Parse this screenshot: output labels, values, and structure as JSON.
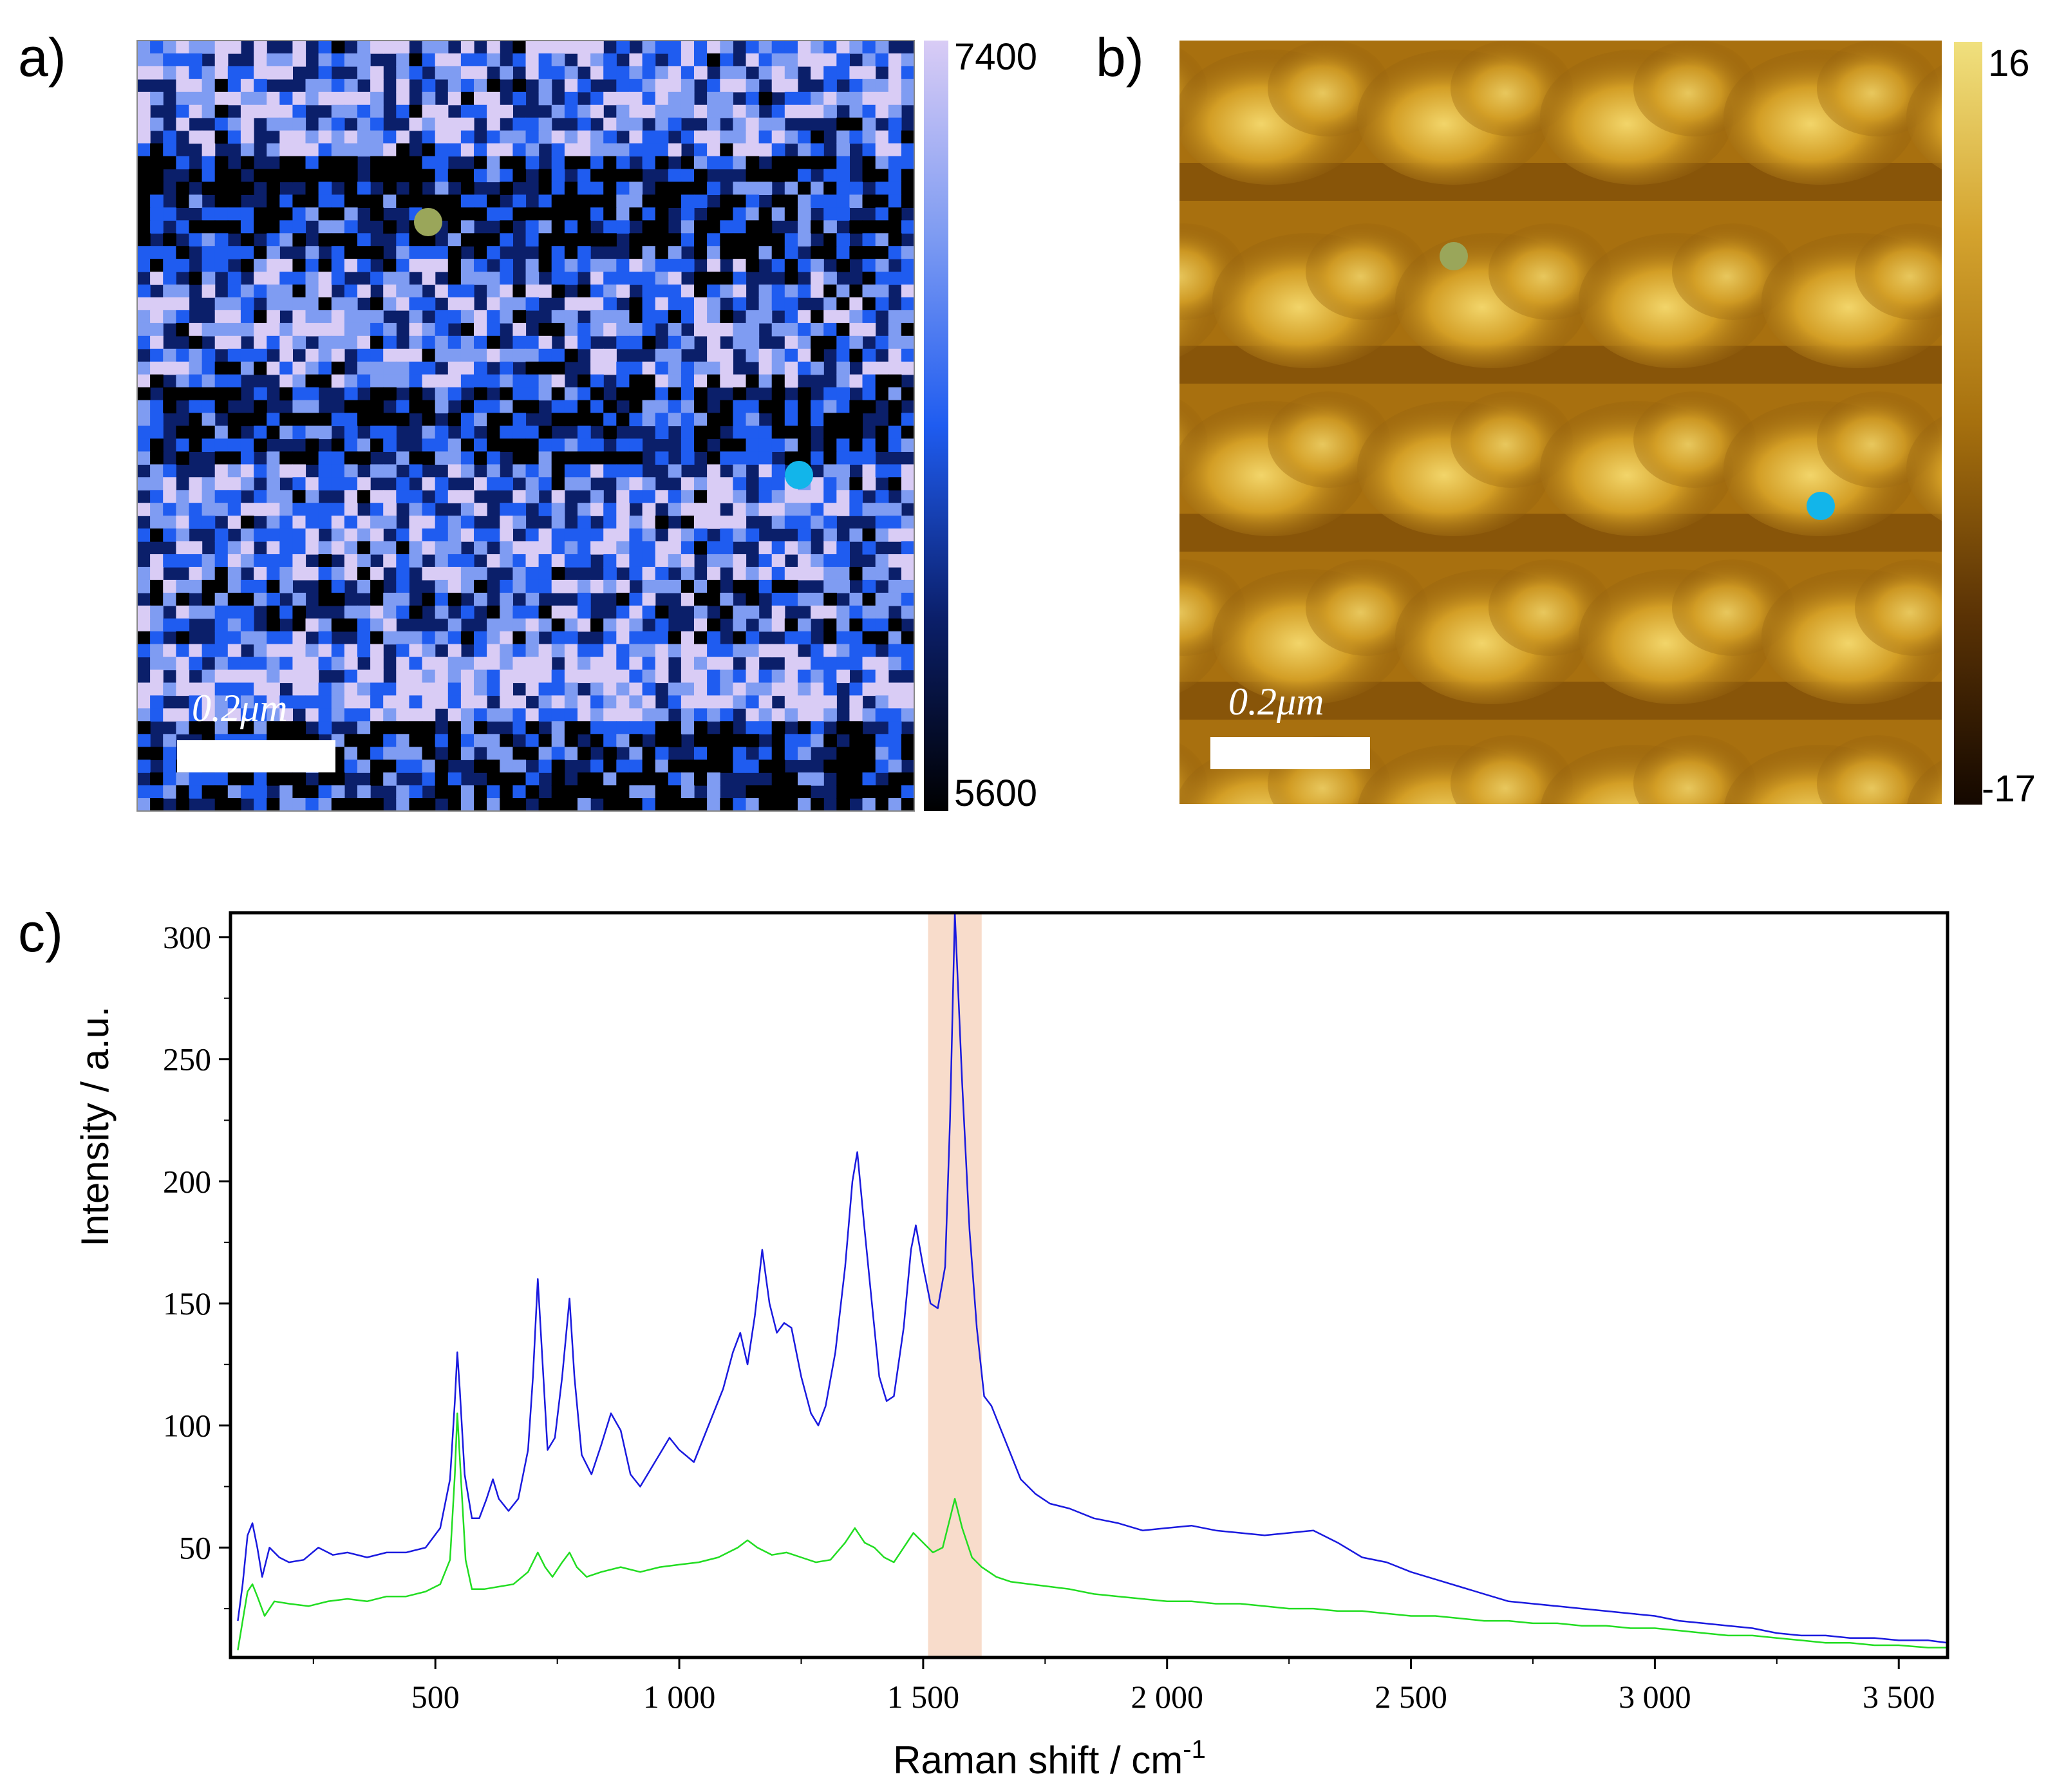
{
  "panels": {
    "a": {
      "label": "a)",
      "colorbar": {
        "max_label": "7400",
        "min_label": "5600",
        "colors": [
          "#000000",
          "#0b1f6a",
          "#1f5cf0",
          "#7f9cf2",
          "#d9ccf5"
        ]
      },
      "scale_bar": "0.2μm",
      "markers": [
        {
          "color": "#9aa65a"
        },
        {
          "color": "#12b5ea"
        }
      ]
    },
    "b": {
      "label": "b)",
      "colorbar": {
        "max_label": "16",
        "min_label": "-17",
        "colors": [
          "#140800",
          "#5b3305",
          "#a6700e",
          "#d4a32e",
          "#f0e07e"
        ]
      },
      "scale_bar": "0.2μm",
      "markers": [
        {
          "color": "#9aa65a"
        },
        {
          "color": "#12b5ea"
        }
      ]
    },
    "c": {
      "label": "c)"
    }
  },
  "chart_data": {
    "type": "line",
    "title": "",
    "xlabel": "Raman shift / cm-1",
    "xlabel_main": "Raman shift / cm",
    "xlabel_sup": "-1",
    "ylabel": "Intensity / a.u.",
    "xlim": [
      80,
      3600
    ],
    "ylim": [
      5,
      310
    ],
    "x_ticks": [
      500,
      1000,
      1500,
      2000,
      2500,
      3000,
      3500
    ],
    "x_tick_labels": [
      "500",
      "1 000",
      "1 500",
      "2 000",
      "2 500",
      "3 000",
      "3 500"
    ],
    "y_ticks": [
      50,
      100,
      150,
      200,
      250,
      300
    ],
    "y_tick_labels": [
      "50",
      "100",
      "150",
      "200",
      "250",
      "300"
    ],
    "highlight_band": {
      "from": 1510,
      "to": 1620,
      "color": "#f8dccb"
    },
    "series": [
      {
        "name": "blue spectrum",
        "color": "#1a1adf",
        "points": [
          [
            95,
            20
          ],
          [
            105,
            35
          ],
          [
            115,
            55
          ],
          [
            125,
            60
          ],
          [
            135,
            50
          ],
          [
            145,
            38
          ],
          [
            160,
            50
          ],
          [
            180,
            46
          ],
          [
            200,
            44
          ],
          [
            230,
            45
          ],
          [
            260,
            50
          ],
          [
            290,
            47
          ],
          [
            320,
            48
          ],
          [
            360,
            46
          ],
          [
            400,
            48
          ],
          [
            440,
            48
          ],
          [
            480,
            50
          ],
          [
            510,
            58
          ],
          [
            530,
            78
          ],
          [
            540,
            110
          ],
          [
            545,
            130
          ],
          [
            550,
            115
          ],
          [
            560,
            80
          ],
          [
            575,
            62
          ],
          [
            590,
            62
          ],
          [
            605,
            70
          ],
          [
            618,
            78
          ],
          [
            630,
            70
          ],
          [
            650,
            65
          ],
          [
            670,
            70
          ],
          [
            690,
            90
          ],
          [
            700,
            120
          ],
          [
            710,
            160
          ],
          [
            720,
            125
          ],
          [
            730,
            90
          ],
          [
            745,
            95
          ],
          [
            760,
            120
          ],
          [
            775,
            152
          ],
          [
            785,
            120
          ],
          [
            800,
            88
          ],
          [
            820,
            80
          ],
          [
            840,
            92
          ],
          [
            860,
            105
          ],
          [
            880,
            98
          ],
          [
            900,
            80
          ],
          [
            920,
            75
          ],
          [
            950,
            85
          ],
          [
            980,
            95
          ],
          [
            1000,
            90
          ],
          [
            1030,
            85
          ],
          [
            1060,
            100
          ],
          [
            1090,
            115
          ],
          [
            1110,
            130
          ],
          [
            1125,
            138
          ],
          [
            1140,
            125
          ],
          [
            1155,
            145
          ],
          [
            1170,
            172
          ],
          [
            1185,
            150
          ],
          [
            1200,
            138
          ],
          [
            1215,
            142
          ],
          [
            1230,
            140
          ],
          [
            1250,
            120
          ],
          [
            1270,
            105
          ],
          [
            1285,
            100
          ],
          [
            1300,
            108
          ],
          [
            1320,
            130
          ],
          [
            1340,
            165
          ],
          [
            1355,
            200
          ],
          [
            1365,
            212
          ],
          [
            1380,
            180
          ],
          [
            1395,
            150
          ],
          [
            1410,
            120
          ],
          [
            1425,
            110
          ],
          [
            1440,
            112
          ],
          [
            1460,
            140
          ],
          [
            1475,
            172
          ],
          [
            1485,
            182
          ],
          [
            1500,
            165
          ],
          [
            1515,
            150
          ],
          [
            1530,
            148
          ],
          [
            1545,
            165
          ],
          [
            1555,
            225
          ],
          [
            1565,
            310
          ],
          [
            1580,
            240
          ],
          [
            1595,
            180
          ],
          [
            1610,
            140
          ],
          [
            1625,
            112
          ],
          [
            1640,
            108
          ],
          [
            1660,
            98
          ],
          [
            1680,
            88
          ],
          [
            1700,
            78
          ],
          [
            1730,
            72
          ],
          [
            1760,
            68
          ],
          [
            1800,
            66
          ],
          [
            1850,
            62
          ],
          [
            1900,
            60
          ],
          [
            1950,
            57
          ],
          [
            2000,
            58
          ],
          [
            2050,
            59
          ],
          [
            2100,
            57
          ],
          [
            2150,
            56
          ],
          [
            2200,
            55
          ],
          [
            2250,
            56
          ],
          [
            2300,
            57
          ],
          [
            2350,
            52
          ],
          [
            2400,
            46
          ],
          [
            2450,
            44
          ],
          [
            2500,
            40
          ],
          [
            2550,
            37
          ],
          [
            2600,
            34
          ],
          [
            2650,
            31
          ],
          [
            2700,
            28
          ],
          [
            2750,
            27
          ],
          [
            2800,
            26
          ],
          [
            2850,
            25
          ],
          [
            2900,
            24
          ],
          [
            2950,
            23
          ],
          [
            3000,
            22
          ],
          [
            3050,
            20
          ],
          [
            3100,
            19
          ],
          [
            3150,
            18
          ],
          [
            3200,
            17
          ],
          [
            3250,
            15
          ],
          [
            3300,
            14
          ],
          [
            3350,
            14
          ],
          [
            3400,
            13
          ],
          [
            3450,
            13
          ],
          [
            3500,
            12
          ],
          [
            3560,
            12
          ],
          [
            3600,
            11
          ]
        ]
      },
      {
        "name": "green spectrum",
        "color": "#22dd22",
        "points": [
          [
            95,
            8
          ],
          [
            105,
            20
          ],
          [
            115,
            32
          ],
          [
            125,
            35
          ],
          [
            135,
            30
          ],
          [
            150,
            22
          ],
          [
            170,
            28
          ],
          [
            200,
            27
          ],
          [
            240,
            26
          ],
          [
            280,
            28
          ],
          [
            320,
            29
          ],
          [
            360,
            28
          ],
          [
            400,
            30
          ],
          [
            440,
            30
          ],
          [
            480,
            32
          ],
          [
            510,
            35
          ],
          [
            530,
            45
          ],
          [
            540,
            80
          ],
          [
            545,
            105
          ],
          [
            552,
            80
          ],
          [
            562,
            45
          ],
          [
            575,
            33
          ],
          [
            600,
            33
          ],
          [
            630,
            34
          ],
          [
            660,
            35
          ],
          [
            690,
            40
          ],
          [
            710,
            48
          ],
          [
            725,
            42
          ],
          [
            740,
            38
          ],
          [
            760,
            44
          ],
          [
            775,
            48
          ],
          [
            790,
            42
          ],
          [
            810,
            38
          ],
          [
            840,
            40
          ],
          [
            880,
            42
          ],
          [
            920,
            40
          ],
          [
            960,
            42
          ],
          [
            1000,
            43
          ],
          [
            1040,
            44
          ],
          [
            1080,
            46
          ],
          [
            1120,
            50
          ],
          [
            1140,
            53
          ],
          [
            1160,
            50
          ],
          [
            1190,
            47
          ],
          [
            1220,
            48
          ],
          [
            1250,
            46
          ],
          [
            1280,
            44
          ],
          [
            1310,
            45
          ],
          [
            1340,
            52
          ],
          [
            1360,
            58
          ],
          [
            1380,
            52
          ],
          [
            1400,
            50
          ],
          [
            1420,
            46
          ],
          [
            1440,
            44
          ],
          [
            1460,
            50
          ],
          [
            1480,
            56
          ],
          [
            1500,
            52
          ],
          [
            1520,
            48
          ],
          [
            1540,
            50
          ],
          [
            1555,
            62
          ],
          [
            1565,
            70
          ],
          [
            1580,
            58
          ],
          [
            1600,
            46
          ],
          [
            1620,
            42
          ],
          [
            1650,
            38
          ],
          [
            1680,
            36
          ],
          [
            1720,
            35
          ],
          [
            1760,
            34
          ],
          [
            1800,
            33
          ],
          [
            1850,
            31
          ],
          [
            1900,
            30
          ],
          [
            1950,
            29
          ],
          [
            2000,
            28
          ],
          [
            2050,
            28
          ],
          [
            2100,
            27
          ],
          [
            2150,
            27
          ],
          [
            2200,
            26
          ],
          [
            2250,
            25
          ],
          [
            2300,
            25
          ],
          [
            2350,
            24
          ],
          [
            2400,
            24
          ],
          [
            2450,
            23
          ],
          [
            2500,
            22
          ],
          [
            2550,
            22
          ],
          [
            2600,
            21
          ],
          [
            2650,
            20
          ],
          [
            2700,
            20
          ],
          [
            2750,
            19
          ],
          [
            2800,
            19
          ],
          [
            2850,
            18
          ],
          [
            2900,
            18
          ],
          [
            2950,
            17
          ],
          [
            3000,
            17
          ],
          [
            3050,
            16
          ],
          [
            3100,
            15
          ],
          [
            3150,
            14
          ],
          [
            3200,
            14
          ],
          [
            3250,
            13
          ],
          [
            3300,
            12
          ],
          [
            3350,
            11
          ],
          [
            3400,
            11
          ],
          [
            3450,
            10
          ],
          [
            3500,
            10
          ],
          [
            3560,
            9
          ],
          [
            3600,
            9
          ]
        ]
      }
    ]
  }
}
